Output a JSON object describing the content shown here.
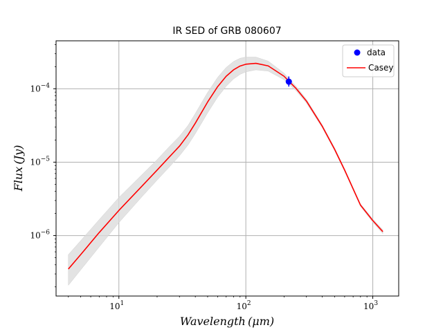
{
  "chart_data": {
    "type": "line",
    "title": "IR SED of GRB 080607",
    "xlabel": "Wavelength (μm)",
    "ylabel": "Flux (Jy)",
    "xscale": "log",
    "yscale": "log",
    "xlim": [
      3.2,
      1600
    ],
    "ylim": [
      1.5e-07,
      0.00045
    ],
    "grid": true,
    "legend_position": "top-right",
    "x_ticks": [
      {
        "value": 10,
        "base": "10",
        "exp": "1"
      },
      {
        "value": 100,
        "base": "10",
        "exp": "2"
      },
      {
        "value": 1000,
        "base": "10",
        "exp": "3"
      }
    ],
    "y_ticks": [
      {
        "value": 1e-06,
        "base": "10",
        "exp": "−6"
      },
      {
        "value": 1e-05,
        "base": "10",
        "exp": "−5"
      },
      {
        "value": 0.0001,
        "base": "10",
        "exp": "−4"
      }
    ],
    "colors": {
      "data": "#0000ff",
      "model": "#ff0000",
      "band": "#d9d9d9",
      "grid": "#b0b0b0"
    },
    "series": [
      {
        "name": "data",
        "kind": "errorbar",
        "x": [
          218
        ],
        "y": [
          0.000125
        ],
        "yerr_low": [
          0.000107
        ],
        "yerr_high": [
          0.000147
        ]
      },
      {
        "name": "Casey",
        "kind": "line",
        "x": [
          4,
          5,
          7,
          10,
          15,
          20,
          25,
          30,
          35,
          40,
          50,
          60,
          70,
          80,
          90,
          100,
          120,
          150,
          200,
          250,
          300,
          400,
          500,
          600,
          800,
          1000,
          1200
        ],
        "y": [
          3.5e-07,
          5.5e-07,
          1.1e-06,
          2.2e-06,
          4.6e-06,
          7.8e-06,
          1.18e-05,
          1.65e-05,
          2.35e-05,
          3.4e-05,
          6.6e-05,
          0.000107,
          0.000148,
          0.000181,
          0.000204,
          0.000216,
          0.000222,
          0.000205,
          0.000148,
          0.0001,
          6.8e-05,
          3.08e-05,
          1.5e-05,
          7.8e-06,
          2.6e-06,
          1.6e-06,
          1.13e-06
        ],
        "band_low": [
          2.1e-07,
          3.4e-07,
          7e-07,
          1.5e-06,
          3.3e-06,
          5.7e-06,
          8.6e-06,
          1.22e-05,
          1.71e-05,
          2.45e-05,
          4.7e-05,
          7.7e-05,
          0.000108,
          0.000136,
          0.000157,
          0.00017,
          0.000181,
          0.000174,
          0.000133,
          9.3e-05,
          6.4e-05,
          2.95e-05,
          1.44e-05,
          7.5e-06,
          2.5e-06,
          1.52e-06,
          1.06e-06
        ],
        "band_high": [
          5.5e-07,
          8.5e-07,
          1.65e-06,
          3.3e-06,
          6.6e-06,
          1.08e-05,
          1.63e-05,
          2.25e-05,
          3.15e-05,
          4.6e-05,
          8.9e-05,
          0.000143,
          0.000195,
          0.000235,
          0.00026,
          0.00027,
          0.00027,
          0.000238,
          0.000163,
          0.000107,
          7.2e-05,
          3.22e-05,
          1.57e-05,
          8.1e-06,
          2.7e-06,
          1.68e-06,
          1.2e-06
        ]
      }
    ]
  }
}
